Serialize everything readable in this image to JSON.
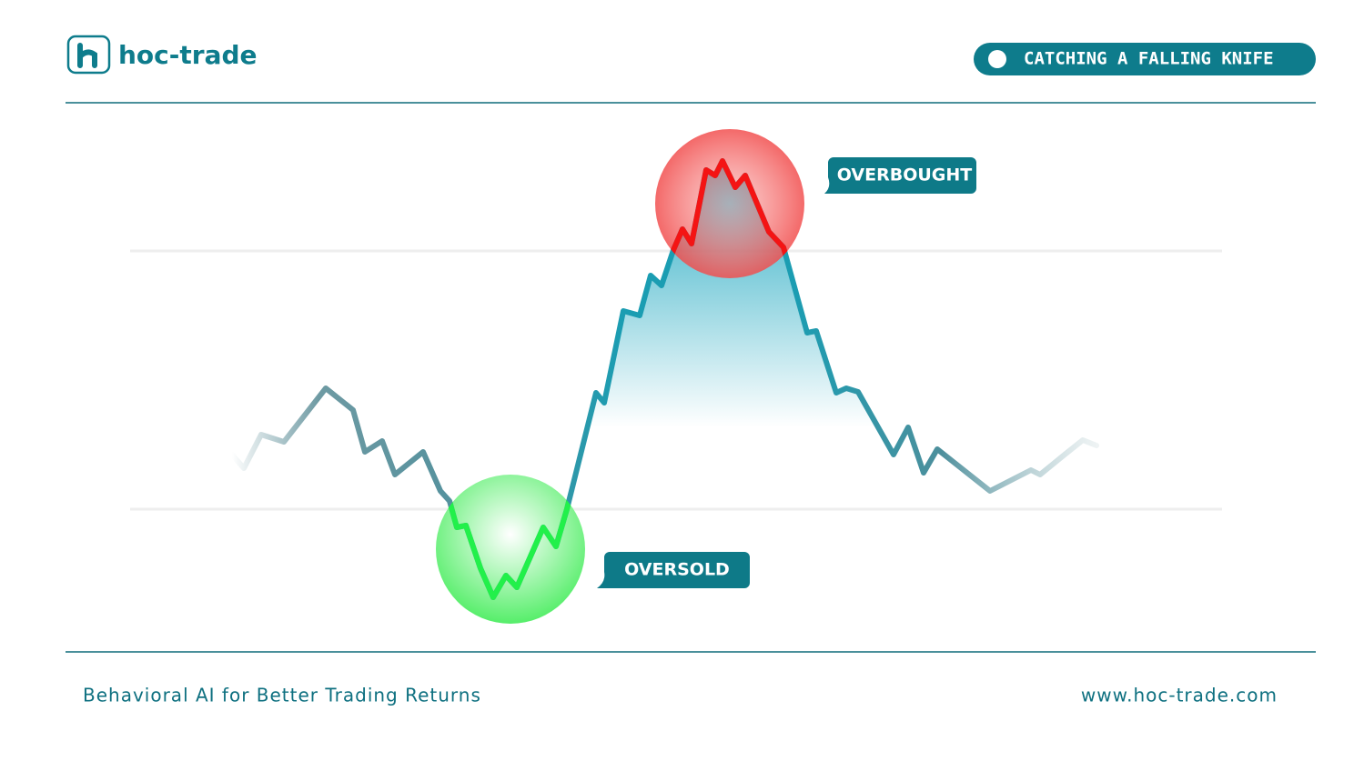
{
  "header": {
    "logo": "hoc-trade",
    "badge": "CATCHING A FALLING KNIFE"
  },
  "labels": {
    "overbought": "OVERBOUGHT",
    "oversold": "OVERSOLD"
  },
  "footer": {
    "tagline": "Behavioral AI for Better Trading Returns",
    "url": "www.hoc-trade.com"
  }
}
